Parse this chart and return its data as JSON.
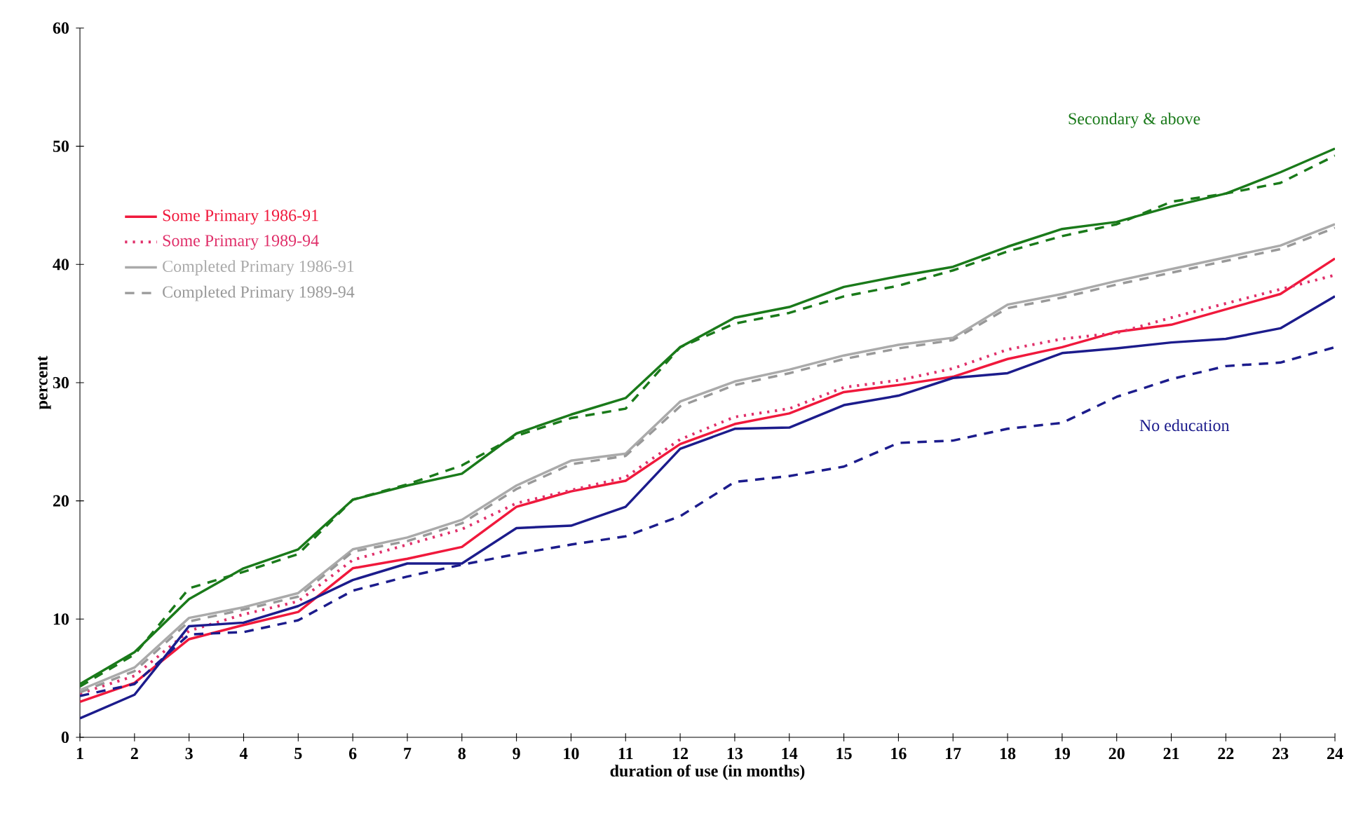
{
  "chart_data": {
    "type": "line",
    "xlabel": "duration of use (in months)",
    "ylabel": "percent",
    "x": [
      1,
      2,
      3,
      4,
      5,
      6,
      7,
      8,
      9,
      10,
      11,
      12,
      13,
      14,
      15,
      16,
      17,
      18,
      19,
      20,
      21,
      22,
      23,
      24
    ],
    "xlim": [
      1,
      24
    ],
    "xticks": [
      1,
      2,
      3,
      4,
      5,
      6,
      7,
      8,
      9,
      10,
      11,
      12,
      13,
      14,
      15,
      16,
      17,
      18,
      19,
      20,
      21,
      22,
      23,
      24
    ],
    "ylim": [
      0,
      60
    ],
    "yticks": [
      0,
      10,
      20,
      30,
      40,
      50,
      60
    ],
    "grid": false,
    "legend": "left",
    "marker": "none",
    "series": [
      {
        "color": "#1a7a1a",
        "line_style": "solid",
        "values": [
          4.5,
          7.2,
          11.7,
          14.3,
          15.9,
          20.1,
          21.3,
          22.3,
          25.7,
          27.3,
          28.7,
          33.0,
          35.5,
          36.4,
          38.1,
          39.0,
          39.8,
          41.5,
          43.0,
          43.6,
          44.9,
          46.0,
          47.8,
          49.8
        ]
      },
      {
        "color": "#1a7a1a",
        "line_style": "dashed",
        "values": [
          4.3,
          7.0,
          12.6,
          14.0,
          15.5,
          20.1,
          21.4,
          23.0,
          25.5,
          27.0,
          27.8,
          33.0,
          35.0,
          35.9,
          37.3,
          38.2,
          39.5,
          41.1,
          42.4,
          43.4,
          45.3,
          46.0,
          46.9,
          49.2
        ]
      },
      {
        "name": "Some Primary 1986-91",
        "color": "#f0193c",
        "line_style": "solid",
        "values": [
          3.0,
          4.6,
          8.3,
          9.5,
          10.6,
          14.3,
          15.1,
          16.1,
          19.5,
          20.8,
          21.7,
          24.8,
          26.5,
          27.4,
          29.2,
          29.8,
          30.5,
          32.0,
          33.0,
          34.3,
          34.9,
          36.2,
          37.5,
          40.5
        ]
      },
      {
        "name": "Some Primary 1989-94",
        "color": "#e0306a",
        "line_style": "dotted",
        "values": [
          3.7,
          5.2,
          9.0,
          10.4,
          11.5,
          15.0,
          16.3,
          17.6,
          19.8,
          20.9,
          22.0,
          25.2,
          27.1,
          27.8,
          29.6,
          30.2,
          31.2,
          32.8,
          33.7,
          34.2,
          35.5,
          36.7,
          37.9,
          39.1
        ]
      },
      {
        "name": "Completed Primary 1986-91",
        "color": "#aaaaaa",
        "line_style": "solid",
        "values": [
          4.0,
          5.9,
          10.1,
          11.0,
          12.2,
          15.9,
          16.9,
          18.4,
          21.3,
          23.4,
          24.0,
          28.4,
          30.1,
          31.1,
          32.3,
          33.2,
          33.8,
          36.6,
          37.5,
          38.6,
          39.6,
          40.6,
          41.6,
          43.4
        ]
      },
      {
        "name": "Completed Primary 1989-94",
        "color": "#999999",
        "line_style": "dashed",
        "values": [
          3.8,
          5.6,
          9.8,
          10.8,
          11.9,
          15.7,
          16.6,
          18.1,
          21.0,
          23.1,
          23.8,
          28.0,
          29.8,
          30.8,
          32.0,
          32.9,
          33.6,
          36.3,
          37.2,
          38.3,
          39.3,
          40.3,
          41.3,
          43.1
        ]
      },
      {
        "color": "#1c1c8c",
        "line_style": "solid",
        "values": [
          1.6,
          3.6,
          9.4,
          9.7,
          11.1,
          13.3,
          14.7,
          14.7,
          17.7,
          17.9,
          19.5,
          24.4,
          26.1,
          26.2,
          28.1,
          28.9,
          30.4,
          30.8,
          32.5,
          32.9,
          33.4,
          33.7,
          34.6,
          37.3
        ]
      },
      {
        "color": "#1c1c8c",
        "line_style": "dashed",
        "values": [
          3.5,
          4.5,
          8.7,
          8.9,
          9.9,
          12.4,
          13.6,
          14.6,
          15.5,
          16.3,
          17.0,
          18.7,
          21.6,
          22.1,
          22.9,
          24.9,
          25.1,
          26.1,
          26.6,
          28.8,
          30.3,
          31.4,
          31.7,
          33.0
        ]
      }
    ],
    "annotations": [
      "Secondary & above",
      "No education"
    ]
  }
}
